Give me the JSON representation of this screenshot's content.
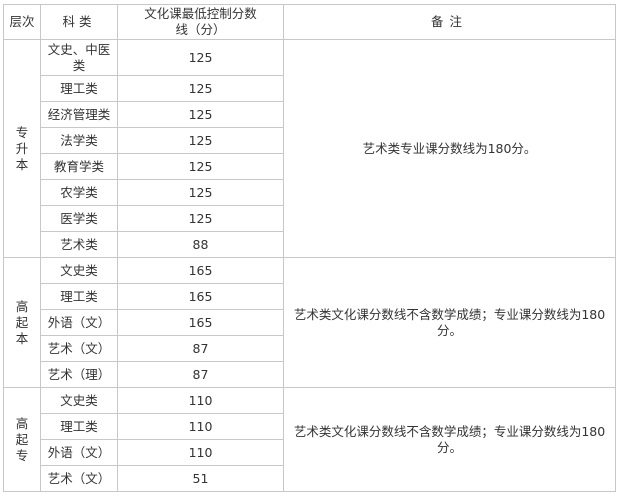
{
  "header": {
    "level": "层次",
    "category": "科类",
    "score": "文化课最低控制分数线（分）",
    "note": "备注"
  },
  "groups": [
    {
      "level": "专升本",
      "note": "艺术类专业课分数线为180分。",
      "rows": [
        {
          "category": "文史、中医类",
          "score": "125"
        },
        {
          "category": "理工类",
          "score": "125"
        },
        {
          "category": "经济管理类",
          "score": "125"
        },
        {
          "category": "法学类",
          "score": "125"
        },
        {
          "category": "教育学类",
          "score": "125"
        },
        {
          "category": "农学类",
          "score": "125"
        },
        {
          "category": "医学类",
          "score": "125"
        },
        {
          "category": "艺术类",
          "score": "88"
        }
      ]
    },
    {
      "level": "高起本",
      "note": "艺术类文化课分数线不含数学成绩；专业课分数线为180分。",
      "rows": [
        {
          "category": "文史类",
          "score": "165"
        },
        {
          "category": "理工类",
          "score": "165"
        },
        {
          "category": "外语（文）",
          "score": "165"
        },
        {
          "category": "艺术（文）",
          "score": "87"
        },
        {
          "category": "艺术（理）",
          "score": "87"
        }
      ]
    },
    {
      "level": "高起专",
      "note": "艺术类文化课分数线不含数学成绩；专业课分数线为180分。",
      "rows": [
        {
          "category": "文史类",
          "score": "110"
        },
        {
          "category": "理工类",
          "score": "110"
        },
        {
          "category": "外语（文）",
          "score": "110"
        },
        {
          "category": "艺术（文）",
          "score": "51"
        }
      ]
    }
  ]
}
